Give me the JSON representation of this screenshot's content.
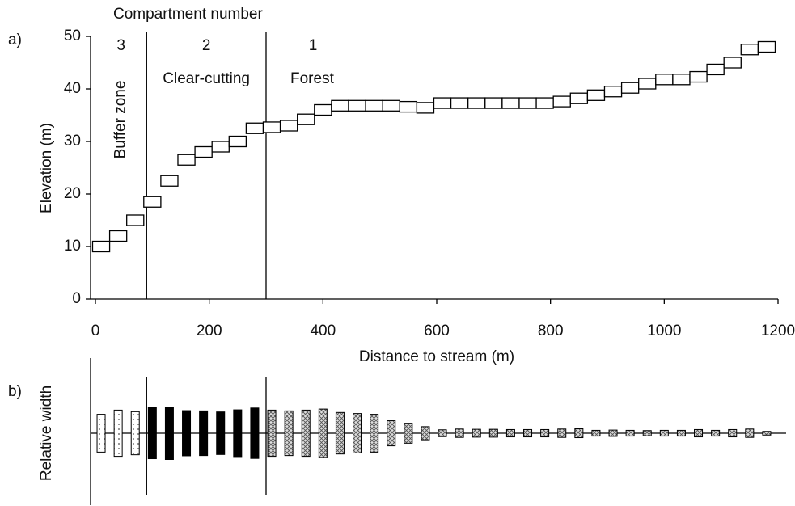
{
  "chart_data": [
    {
      "type": "step-box",
      "panel_label": "a)",
      "title": "Compartment number",
      "compartments": [
        {
          "number": "3",
          "label": "Buffer zone"
        },
        {
          "number": "2",
          "label": "Clear-cutting"
        },
        {
          "number": "1",
          "label": "Forest"
        }
      ],
      "boundaries": [
        90,
        300
      ],
      "x_label": "Distance to stream (m)",
      "y_label": "Elevation (m)",
      "x": [
        10,
        40,
        70,
        100,
        130,
        160,
        190,
        220,
        250,
        280,
        310,
        340,
        370,
        400,
        430,
        460,
        490,
        520,
        550,
        580,
        610,
        640,
        670,
        700,
        730,
        760,
        790,
        820,
        850,
        880,
        910,
        940,
        970,
        1000,
        1030,
        1060,
        1090,
        1120,
        1150,
        1180
      ],
      "values": [
        10,
        12,
        15,
        18.5,
        22.5,
        26.5,
        28,
        29,
        30,
        32.5,
        32.7,
        33,
        34.2,
        36,
        36.8,
        36.8,
        36.8,
        36.8,
        36.6,
        36.4,
        37.3,
        37.3,
        37.3,
        37.3,
        37.3,
        37.3,
        37.3,
        37.6,
        38.2,
        38.8,
        39.5,
        40.2,
        41,
        41.8,
        41.8,
        42.3,
        43.7,
        45,
        47.5,
        48
      ],
      "xlim": [
        0,
        1200
      ],
      "ylim": [
        0,
        50
      ],
      "xticks": [
        0,
        200,
        400,
        600,
        800,
        1000,
        1200
      ],
      "yticks": [
        0,
        10,
        20,
        30,
        40,
        50
      ]
    },
    {
      "type": "bar-symmetric",
      "panel_label": "b)",
      "y_label": "Relative width",
      "boundaries": [
        90,
        300
      ],
      "x": [
        10,
        40,
        70,
        100,
        130,
        160,
        190,
        220,
        250,
        280,
        310,
        340,
        370,
        400,
        430,
        460,
        490,
        520,
        550,
        580,
        610,
        640,
        670,
        700,
        730,
        760,
        790,
        820,
        850,
        880,
        910,
        940,
        970,
        1000,
        1030,
        1060,
        1090,
        1120,
        1150,
        1180
      ],
      "values": [
        72,
        88,
        82,
        97,
        100,
        86,
        85,
        81,
        89,
        96,
        88,
        85,
        88,
        92,
        79,
        75,
        72,
        48,
        38,
        25,
        13,
        16,
        15,
        15,
        14,
        14,
        14,
        16,
        17,
        11,
        12,
        11,
        10,
        11,
        11,
        14,
        11,
        14,
        16,
        7
      ],
      "xlim": [
        0,
        1200
      ]
    }
  ]
}
